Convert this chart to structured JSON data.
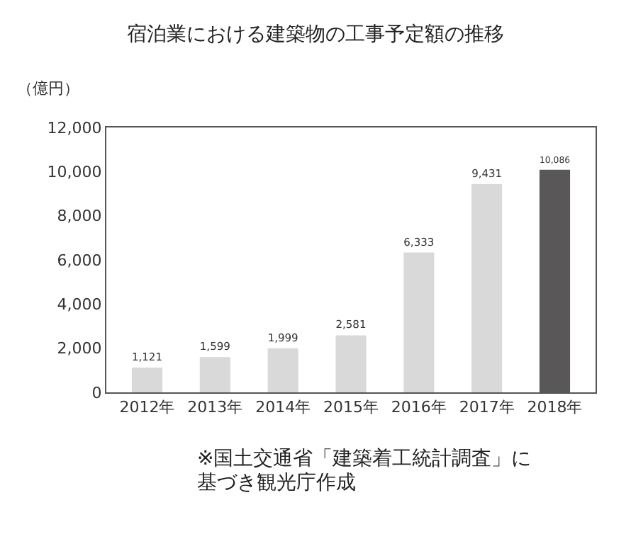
{
  "chart_data": {
    "type": "bar",
    "title": "宿泊業における建築物の工事予定額の推移",
    "ylabel": "（億円）",
    "categories": [
      "2012年",
      "2013年",
      "2014年",
      "2015年",
      "2016年",
      "2017年",
      "2018年"
    ],
    "values": [
      1121,
      1599,
      1999,
      2581,
      6333,
      9431,
      10086
    ],
    "value_labels": [
      "1,121",
      "1,599",
      "1,999",
      "2,581",
      "6,333",
      "9,431",
      "10,086"
    ],
    "colors": [
      "#d9d9d9",
      "#d9d9d9",
      "#d9d9d9",
      "#d9d9d9",
      "#d9d9d9",
      "#d9d9d9",
      "#595757"
    ],
    "ylim": [
      0,
      12000
    ],
    "yticks": [
      0,
      {
        "value": 2000,
        "label": "2,000"
      },
      {
        "value": 4000,
        "label": "4,000"
      },
      {
        "value": 6000,
        "label": "6,000"
      },
      {
        "value": 8000,
        "label": "8,000"
      },
      {
        "value": 10000,
        "label": "10,000"
      },
      {
        "value": 12000,
        "label": "12,000"
      }
    ],
    "grid": false,
    "annotations": [
      "※国土交通省「建築着工統計調査」に",
      "基づき観光庁作成"
    ]
  }
}
